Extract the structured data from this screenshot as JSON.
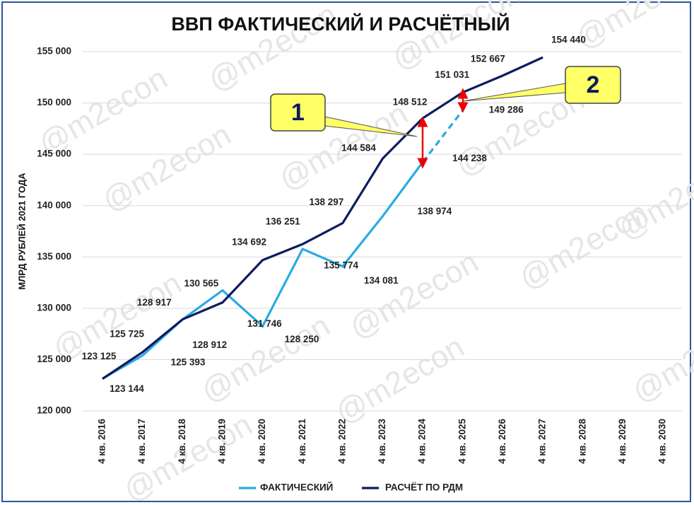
{
  "chart_data": {
    "type": "line",
    "title": "ВВП ФАКТИЧЕСКИЙ И РАСЧЁТНЫЙ",
    "y_label": "МЛРД РУБЛЕЙ 2021 ГОДА",
    "watermark": "@m2econ",
    "categories": [
      "4 кв. 2016",
      "4 кв. 2017",
      "4 кв. 2018",
      "4 кв. 2019",
      "4 кв. 2020",
      "4 кв. 2021",
      "4 кв. 2022",
      "4 кв. 2023",
      "4 кв. 2024",
      "4 кв. 2025",
      "4 кв. 2026",
      "4 кв. 2027",
      "4 кв. 2028",
      "4 кв. 2029",
      "4 кв. 2030"
    ],
    "series": [
      {
        "name": "ФАКТИЧЕСКИЙ",
        "color": "#29abe2",
        "dashed_after": 8,
        "values": [
          123144,
          125393,
          128912,
          131746,
          128250,
          135774,
          134081,
          138974,
          144238,
          149286,
          null,
          null,
          null,
          null,
          null
        ],
        "value_labels": [
          "123 144",
          "125 393",
          "128 912",
          "131 746",
          "128 250",
          "135 774",
          "134 081",
          "138 974",
          "144 238",
          "149 286",
          null,
          null,
          null,
          null,
          null
        ]
      },
      {
        "name": "РАСЧЁТ ПО РДМ",
        "color": "#0d1b5e",
        "values": [
          123125,
          125725,
          128917,
          130565,
          134692,
          136251,
          138297,
          144584,
          148512,
          151031,
          152667,
          154440,
          null,
          null,
          null
        ],
        "value_labels": [
          "123 125",
          "125 725",
          "128 917",
          "130 565",
          "134 692",
          "136 251",
          "138 297",
          "144 584",
          "148 512",
          "151 031",
          "152 667",
          "154 440",
          null,
          null,
          null
        ]
      }
    ],
    "ylim": [
      120000,
      155000
    ],
    "yticks": [
      {
        "value": 120000,
        "label": "120 000"
      },
      {
        "value": 125000,
        "label": "125 000"
      },
      {
        "value": 130000,
        "label": "130 000"
      },
      {
        "value": 135000,
        "label": "135 000"
      },
      {
        "value": 140000,
        "label": "140 000"
      },
      {
        "value": 145000,
        "label": "145 000"
      },
      {
        "value": 150000,
        "label": "150 000"
      },
      {
        "value": 155000,
        "label": "155 000"
      }
    ],
    "grid": true,
    "legend": "bottom",
    "annotations": [
      "1",
      "2"
    ]
  }
}
